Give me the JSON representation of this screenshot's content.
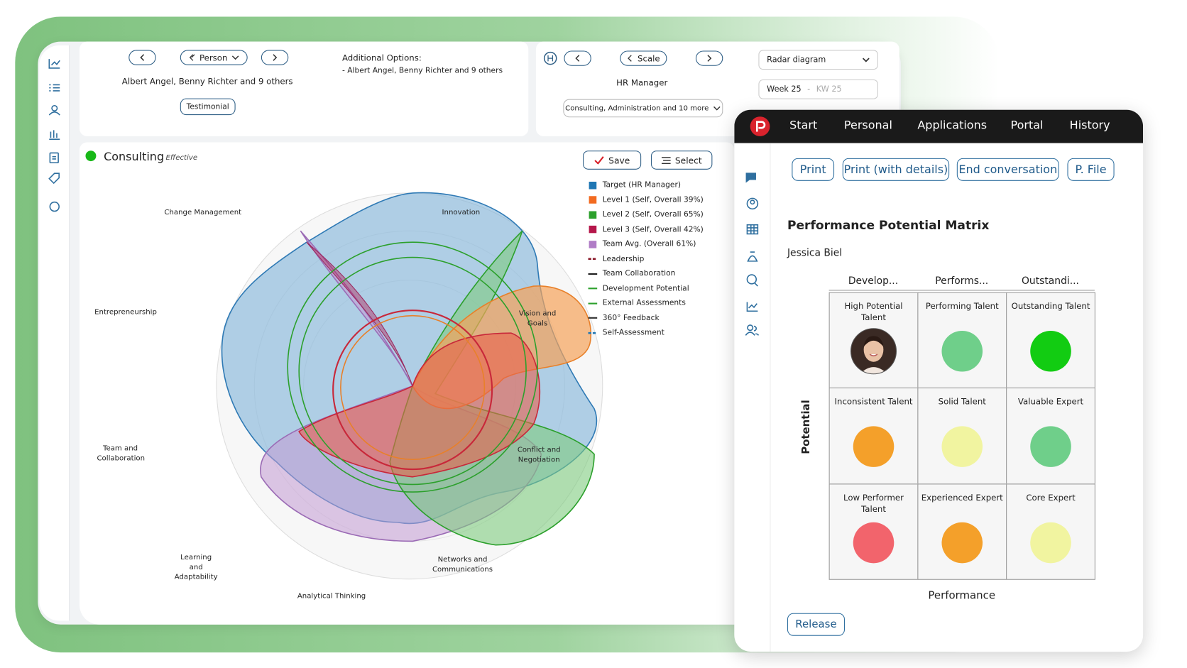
{
  "toolbar": {
    "person": "Person",
    "selection": "Albert Angel, Benny Richter and 9 others",
    "testimonial": "Testimonial",
    "options_title": "Additional Options:",
    "options_item": "- Albert Angel, Benny Richter and 9 others",
    "scale": "Scale",
    "role": "HR Manager",
    "departments": "Consulting, Administration and 10 more",
    "view": "Radar diagram",
    "week": "Week 25",
    "week_separator": "-",
    "week_end": "KW 25"
  },
  "radar": {
    "title": "Consulting",
    "status": "Effective",
    "save": "Save",
    "select": "Select",
    "axes": [
      "Change Management",
      "Innovation",
      "Vision and Goals",
      "Conflict and Negotiation",
      "Networks and Communications",
      "Analytical Thinking",
      "Learning and Adaptability",
      "Team and Collaboration",
      "Entrepreneurship"
    ],
    "legend": [
      {
        "name": "Target (HR Manager)",
        "color": "#1f77b4",
        "style": "square"
      },
      {
        "name": "Level 1 (Self, Overall 39%)",
        "color": "#f26b21",
        "style": "square"
      },
      {
        "name": "Level 2 (Self, Overall 65%)",
        "color": "#2ca02c",
        "style": "square"
      },
      {
        "name": "Level 3 (Self, Overall 42%)",
        "color": "#b5174b",
        "style": "square"
      },
      {
        "name": "Team Avg. (Overall 61%)",
        "color": "#b07cc6",
        "style": "square"
      },
      {
        "name": "Leadership",
        "color": "#8b1a2b",
        "style": "dash"
      },
      {
        "name": "Team Collaboration",
        "color": "#222222",
        "style": "line"
      },
      {
        "name": "Development Potential",
        "color": "#2ca02c",
        "style": "line"
      },
      {
        "name": "External Assessments",
        "color": "#2ca02c",
        "style": "line"
      },
      {
        "name": "360° Feedback",
        "color": "#333333",
        "style": "line"
      },
      {
        "name": "Self-Assessment",
        "color": "#1f77b4",
        "style": "dash"
      }
    ]
  },
  "panel": {
    "nav": [
      "Start",
      "Personal",
      "Applications",
      "Portal",
      "History"
    ],
    "actions": [
      "Print",
      "Print (with details)",
      "End conversation",
      "P. File"
    ],
    "title": "Performance Potential Matrix",
    "person": "Jessica Biel",
    "columns": [
      "Develop...",
      "Performs...",
      "Outstandi..."
    ],
    "cells": [
      {
        "label": "High Potential Talent"
      },
      {
        "label": "Performing Talent",
        "color": "#6fcf8a"
      },
      {
        "label": "Outstanding Talent",
        "color": "#12cc12"
      },
      {
        "label": "Inconsistent Talent",
        "color": "#f4a02a"
      },
      {
        "label": "Solid Talent",
        "color": "#f1f4a0"
      },
      {
        "label": "Valuable Expert",
        "color": "#6fcf8a"
      },
      {
        "label": "Low Performer Talent",
        "color": "#f2646c"
      },
      {
        "label": "Experienced Expert",
        "color": "#f4a02a"
      },
      {
        "label": "Core Expert",
        "color": "#f1f4a0"
      }
    ],
    "y_label": "Potential",
    "x_label": "Performance",
    "release": "Release"
  }
}
